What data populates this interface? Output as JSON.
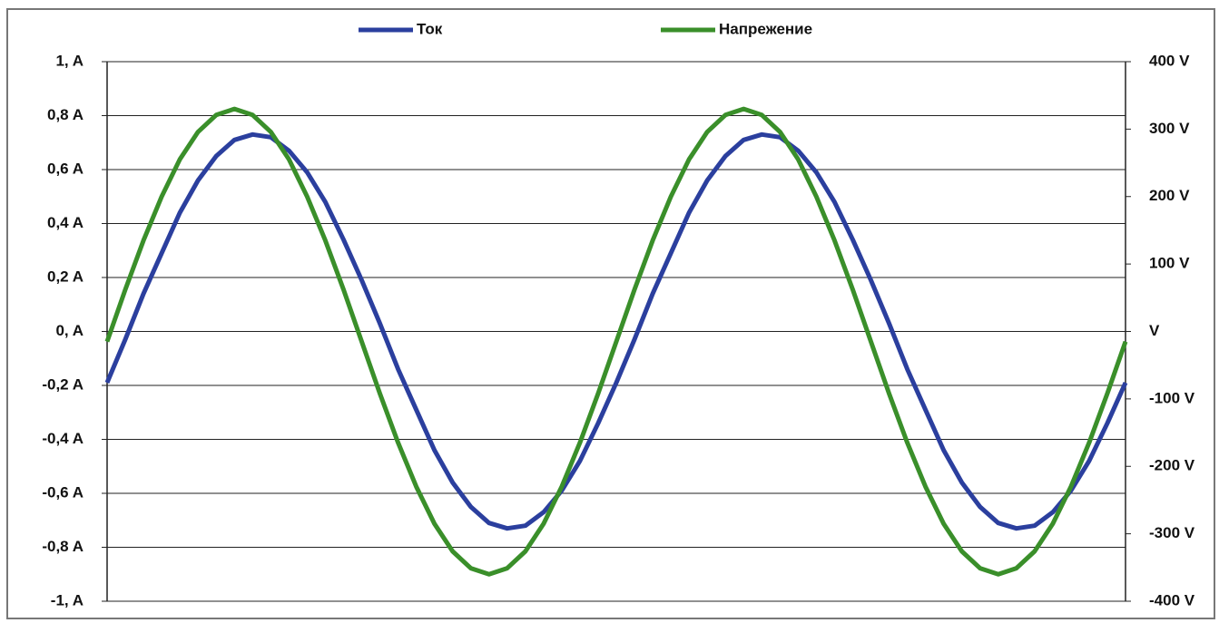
{
  "chart_data": {
    "type": "line",
    "categories": [
      null,
      null,
      null,
      null,
      null,
      null,
      null,
      null,
      null,
      null,
      null,
      null,
      null,
      null,
      null,
      null,
      null,
      null,
      null,
      null,
      null,
      null,
      null,
      null,
      null,
      null,
      null,
      null,
      null,
      null,
      null,
      null,
      null,
      null,
      null,
      null,
      null,
      null,
      null,
      null,
      null,
      null,
      null,
      null,
      null,
      null,
      null,
      null,
      null,
      null,
      null,
      null,
      null,
      null,
      null,
      null,
      null
    ],
    "series": [
      {
        "name": "Ток",
        "color": "#2b3f9e",
        "values": [
          -0.19,
          -0.03,
          0.14,
          0.29,
          0.44,
          0.56,
          0.65,
          0.71,
          0.73,
          0.72,
          0.67,
          0.59,
          0.48,
          0.34,
          0.19,
          0.03,
          -0.14,
          -0.29,
          -0.44,
          -0.56,
          -0.65,
          -0.71,
          -0.73,
          -0.72,
          -0.67,
          -0.59,
          -0.48,
          -0.34,
          -0.19,
          -0.03,
          0.14,
          0.29,
          0.44,
          0.56,
          0.65,
          0.71,
          0.73,
          0.72,
          0.67,
          0.59,
          0.48,
          0.34,
          0.19,
          0.03,
          -0.14,
          -0.29,
          -0.44,
          -0.56,
          -0.65,
          -0.71,
          -0.73,
          -0.72,
          -0.67,
          -0.59,
          -0.48,
          -0.34,
          -0.19
        ]
      },
      {
        "name": "Напрежение",
        "color": "#3a8f2a",
        "axis": "y2",
        "values": [
          -15,
          62,
          135,
          200,
          255,
          296,
          321,
          330,
          321,
          296,
          255,
          200,
          135,
          62,
          -15,
          -92,
          -165,
          -230,
          -285,
          -326,
          -351,
          -360,
          -351,
          -326,
          -285,
          -230,
          -165,
          -92,
          -15,
          62,
          135,
          200,
          255,
          296,
          321,
          330,
          321,
          296,
          255,
          200,
          135,
          62,
          -15,
          -92,
          -165,
          -230,
          -285,
          -326,
          -351,
          -360,
          -351,
          -326,
          -285,
          -230,
          -165,
          -92,
          -15
        ]
      }
    ],
    "ylim": [
      -1,
      1
    ],
    "yticks": [
      {
        "value": 1,
        "label": "1, A"
      },
      {
        "value": 0.8,
        "label": "0,8 A"
      },
      {
        "value": 0.6,
        "label": "0,6 A"
      },
      {
        "value": 0.4,
        "label": "0,4 A"
      },
      {
        "value": 0.2,
        "label": "0,2 A"
      },
      {
        "value": 0,
        "label": "0, A"
      },
      {
        "value": -0.2,
        "label": "-0,2 A"
      },
      {
        "value": -0.4,
        "label": "-0,4 A"
      },
      {
        "value": -0.6,
        "label": "-0,6 A"
      },
      {
        "value": -0.8,
        "label": "-0,8 A"
      },
      {
        "value": -1,
        "label": "-1, A"
      }
    ],
    "y2lim": [
      -400,
      400
    ],
    "y2ticks": [
      {
        "value": 400,
        "label": "400 V"
      },
      {
        "value": 300,
        "label": "300 V"
      },
      {
        "value": 200,
        "label": "200 V"
      },
      {
        "value": 100,
        "label": "100 V"
      },
      {
        "value": 0,
        "label": "V"
      },
      {
        "value": -100,
        "label": "-100 V"
      },
      {
        "value": -200,
        "label": "-200 V"
      },
      {
        "value": -300,
        "label": "-300 V"
      },
      {
        "value": -400,
        "label": "-400 V"
      }
    ],
    "grid": true,
    "legend": "top"
  }
}
